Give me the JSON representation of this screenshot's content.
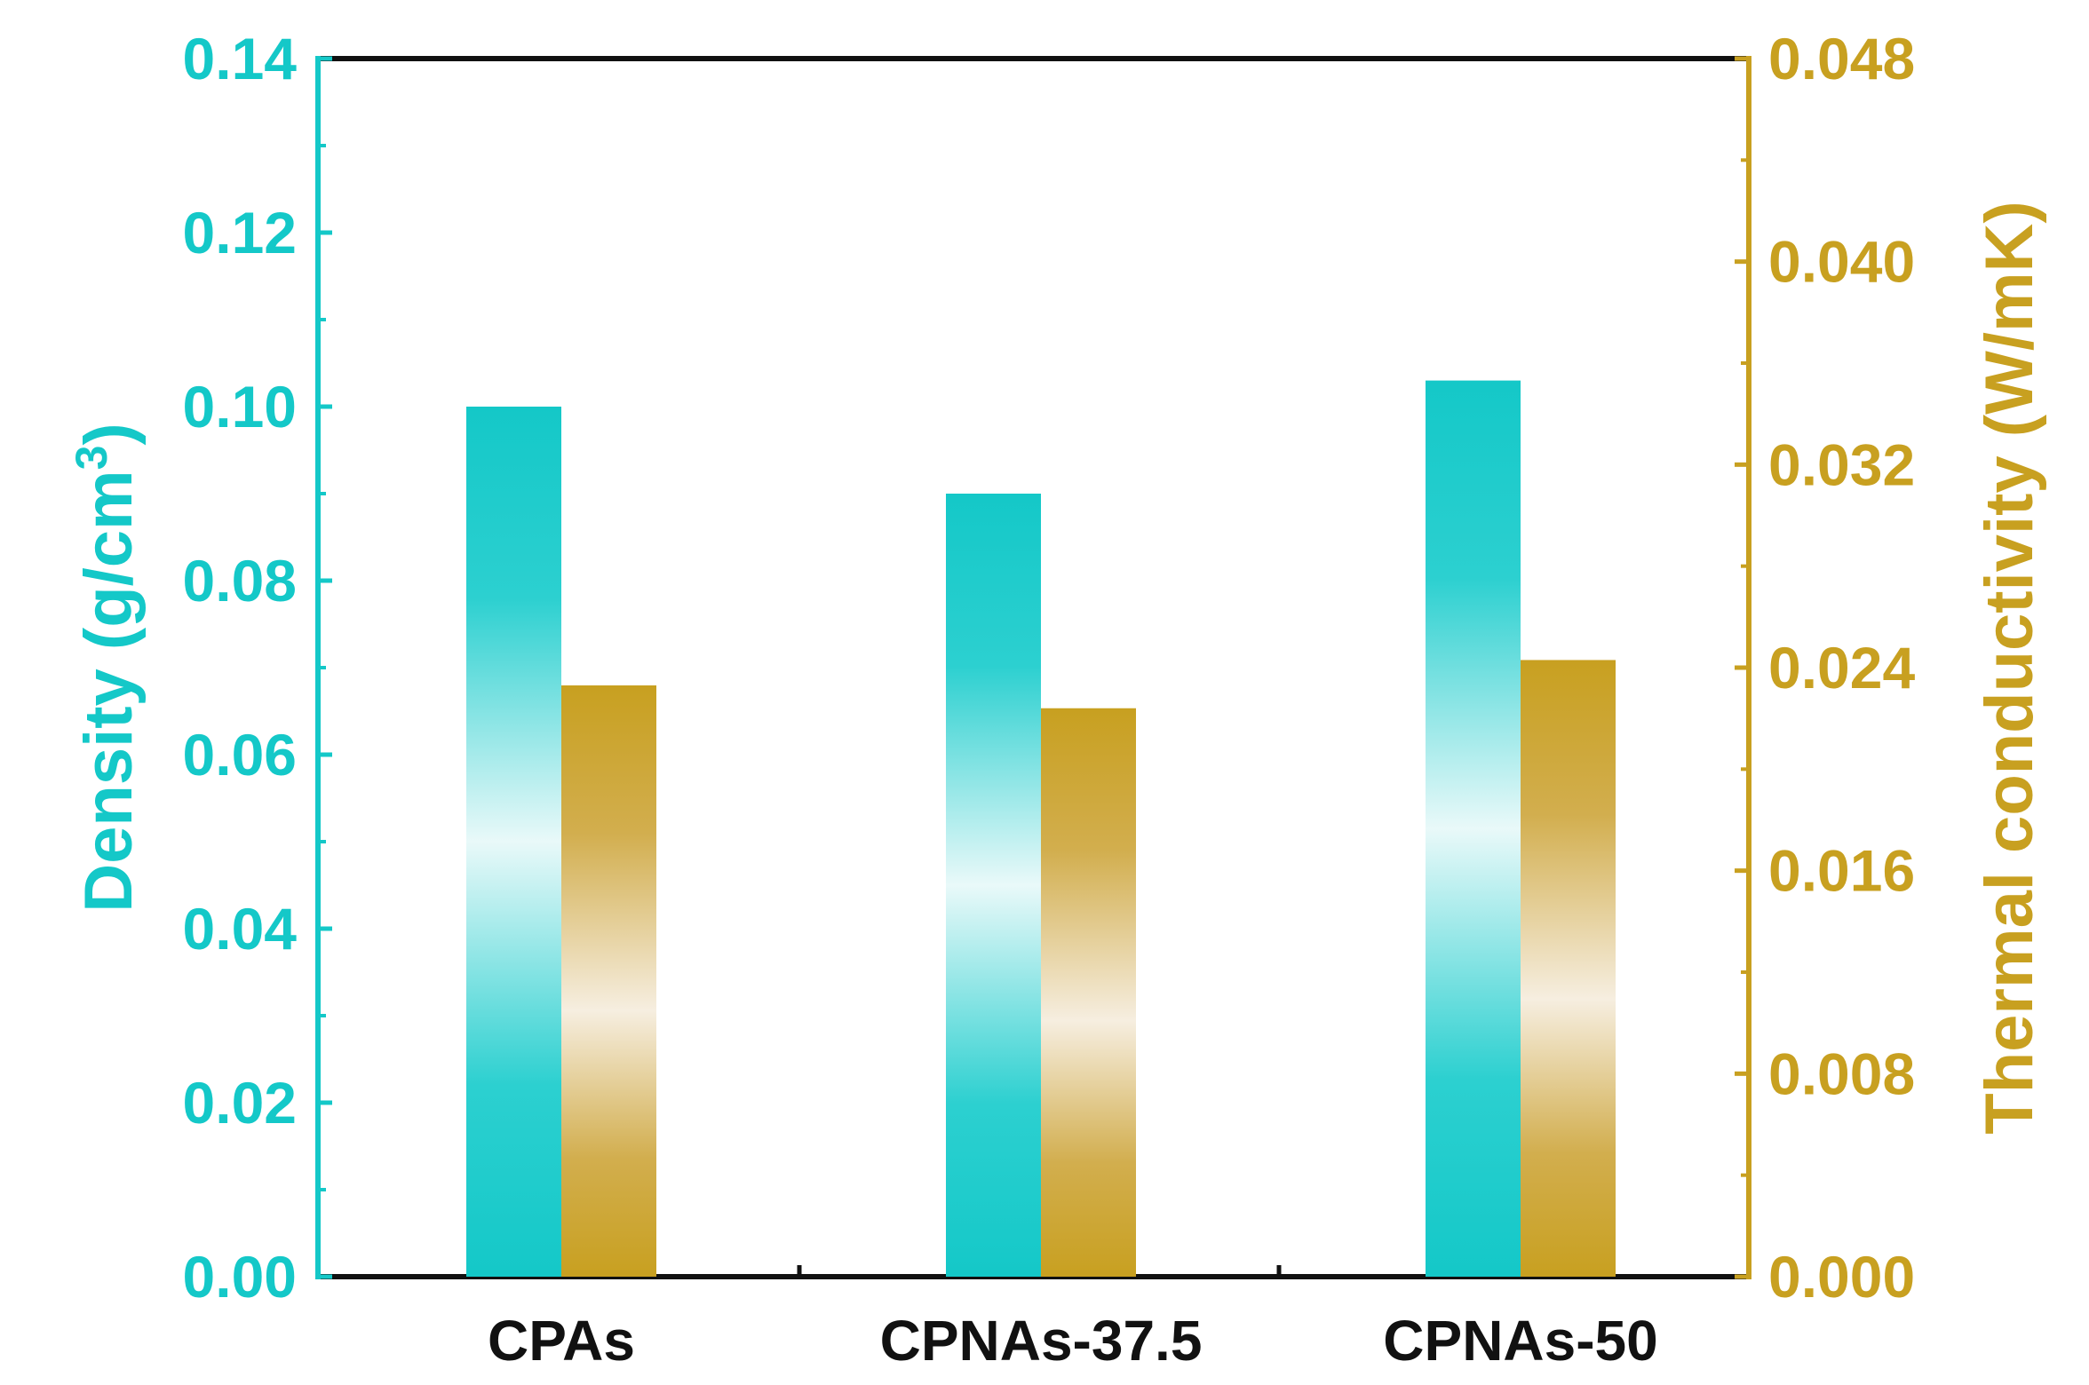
{
  "colors": {
    "density": "#14c8c8",
    "density_light": "#e9f9f9",
    "conductivity": "#c8a020",
    "conductivity_light": "#f6eee0",
    "axis_top_bottom": "#111111"
  },
  "chart_data": {
    "type": "bar",
    "categories": [
      "CPAs",
      "CPNAs-37.5",
      "CPNAs-50"
    ],
    "series": [
      {
        "name": "Density",
        "axis": "left",
        "values": [
          0.1,
          0.09,
          0.103
        ]
      },
      {
        "name": "Thermal conductivity",
        "axis": "right",
        "values": [
          0.0233,
          0.0224,
          0.0243
        ]
      }
    ],
    "left_axis": {
      "label_main": "Density (g/cm",
      "label_sup": "3",
      "label_close": ")",
      "ylim": [
        0,
        0.14
      ],
      "ticks": [
        "0.00",
        "0.02",
        "0.04",
        "0.06",
        "0.08",
        "0.10",
        "0.12",
        "0.14"
      ]
    },
    "right_axis": {
      "label": "Thermal conductivity (W/mK)",
      "ylim": [
        0,
        0.048
      ],
      "ticks": [
        "0.000",
        "0.008",
        "0.016",
        "0.024",
        "0.032",
        "0.040",
        "0.048"
      ]
    },
    "grid": false,
    "legend": "none"
  }
}
